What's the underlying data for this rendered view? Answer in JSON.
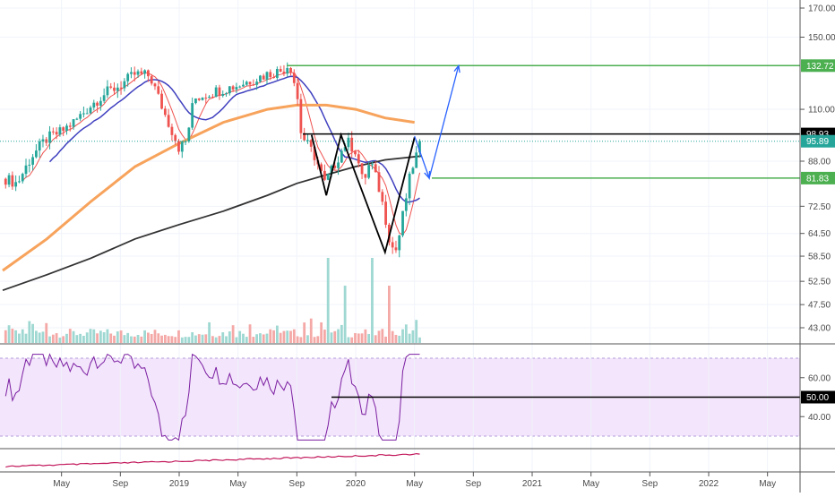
{
  "chart_data": [
    {
      "type": "candlestick",
      "title": "",
      "y_axis": {
        "scale": "log",
        "ticks": [
          "170.00",
          "150.00",
          "110.00",
          "88.00",
          "72.50",
          "64.50",
          "58.50",
          "52.50",
          "47.50",
          "43.00"
        ],
        "ylim": [
          41.5,
          178
        ]
      },
      "x_axis": {
        "ticks": [
          "May",
          "Sep",
          "2019",
          "May",
          "Sep",
          "2020",
          "May",
          "Sep",
          "2021",
          "May",
          "Sep",
          "2022",
          "May"
        ]
      },
      "price_labels": [
        {
          "value": "132.72",
          "color": "#4caf50"
        },
        {
          "value": "98.93",
          "color": "#000000"
        },
        {
          "value": "95.89",
          "color": "#26a69a"
        },
        {
          "value": "81.83",
          "color": "#4caf50"
        }
      ],
      "horizontal_levels": [
        {
          "value": 132.72,
          "color": "#4caf50"
        },
        {
          "value": 98.93,
          "color": "#000000"
        },
        {
          "value": 81.83,
          "color": "#4caf50"
        }
      ],
      "last_price": 95.89,
      "colors": {
        "up": "#26a69a",
        "down": "#ef5350",
        "sma_fast": "#ef5350",
        "sma_mid": "#3f3fbf",
        "sma_slow": "#f7a35c",
        "sma_long": "#333333",
        "projection": "#2962ff"
      },
      "projection_path": [
        {
          "x": "2020-05",
          "y": 98.0
        },
        {
          "x": "2020-06",
          "y": 81.83
        },
        {
          "x": "2020-08",
          "y": 132.72
        }
      ],
      "pattern_path": [
        {
          "x": "2019-10",
          "y": 98.5
        },
        {
          "x": "2019-11",
          "y": 76.0
        },
        {
          "x": "2019-12",
          "y": 98.5
        },
        {
          "x": "2020-03",
          "y": 59.5
        },
        {
          "x": "2020-05",
          "y": 97.5
        }
      ],
      "volume_spikes": [
        "2019-12",
        "2020-03"
      ]
    },
    {
      "type": "line",
      "indicator": "RSI",
      "y_axis": {
        "ticks": [
          "60.00",
          "40.00"
        ],
        "ylim": [
          20,
          80
        ]
      },
      "band": [
        30,
        70
      ],
      "level_label": "50.00",
      "level": 50
    }
  ]
}
